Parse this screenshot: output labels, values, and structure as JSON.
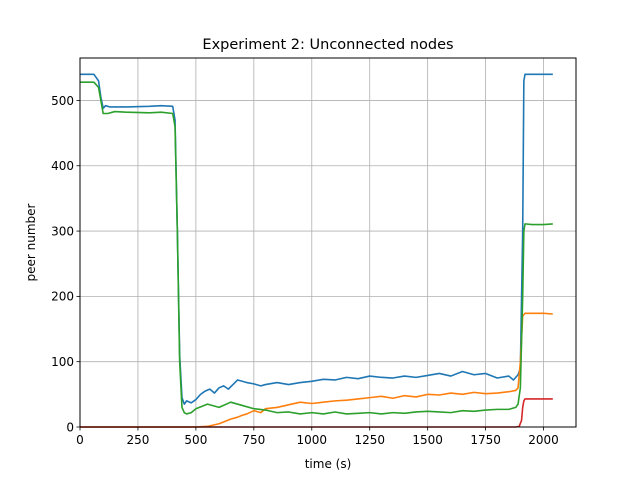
{
  "chart_data": {
    "type": "line",
    "title": "Experiment 2: Unconnected nodes",
    "xlabel": "time (s)",
    "ylabel": "peer number",
    "xlim": [
      0,
      2140
    ],
    "ylim": [
      0,
      565
    ],
    "xticks": [
      0,
      250,
      500,
      750,
      1000,
      1250,
      1500,
      1750,
      2000
    ],
    "yticks": [
      0,
      100,
      200,
      300,
      400,
      500
    ],
    "grid": true,
    "legend": "none",
    "series": [
      {
        "color": "#1f77b4",
        "x": [
          0,
          60,
          80,
          90,
          100,
          110,
          130,
          200,
          300,
          350,
          400,
          410,
          420,
          430,
          440,
          450,
          460,
          480,
          500,
          520,
          540,
          560,
          580,
          600,
          620,
          640,
          660,
          680,
          700,
          720,
          750,
          780,
          800,
          850,
          900,
          950,
          1000,
          1050,
          1100,
          1150,
          1200,
          1250,
          1300,
          1350,
          1400,
          1450,
          1500,
          1550,
          1600,
          1650,
          1700,
          1750,
          1800,
          1850,
          1870,
          1890,
          1900,
          1910,
          1915,
          1920,
          1950,
          2000,
          2040
        ],
        "y": [
          540,
          540,
          530,
          505,
          488,
          492,
          490,
          490,
          491,
          492,
          491,
          470,
          300,
          110,
          45,
          35,
          40,
          37,
          42,
          50,
          55,
          58,
          52,
          60,
          63,
          58,
          65,
          72,
          70,
          68,
          66,
          63,
          65,
          68,
          65,
          68,
          70,
          73,
          72,
          76,
          74,
          78,
          76,
          75,
          78,
          76,
          79,
          82,
          78,
          85,
          80,
          82,
          75,
          78,
          72,
          80,
          90,
          300,
          530,
          540,
          540,
          540,
          540
        ]
      },
      {
        "color": "#ff7f0e",
        "x": [
          0,
          400,
          450,
          500,
          550,
          600,
          650,
          680,
          700,
          720,
          750,
          780,
          800,
          850,
          900,
          950,
          1000,
          1050,
          1100,
          1150,
          1200,
          1250,
          1300,
          1350,
          1400,
          1450,
          1500,
          1550,
          1600,
          1650,
          1700,
          1750,
          1800,
          1850,
          1880,
          1890,
          1900,
          1910,
          1920,
          2000,
          2040
        ],
        "y": [
          0,
          0,
          0,
          0,
          1,
          5,
          12,
          15,
          18,
          20,
          25,
          22,
          28,
          30,
          34,
          38,
          36,
          38,
          40,
          41,
          43,
          45,
          47,
          44,
          48,
          46,
          50,
          49,
          52,
          50,
          53,
          51,
          52,
          54,
          56,
          60,
          100,
          170,
          174,
          174,
          173
        ]
      },
      {
        "color": "#2ca02c",
        "x": [
          0,
          60,
          80,
          90,
          100,
          120,
          150,
          200,
          300,
          350,
          400,
          410,
          420,
          430,
          440,
          450,
          460,
          480,
          500,
          550,
          600,
          650,
          700,
          750,
          800,
          850,
          900,
          950,
          1000,
          1050,
          1100,
          1150,
          1200,
          1250,
          1300,
          1350,
          1400,
          1450,
          1500,
          1550,
          1600,
          1650,
          1700,
          1750,
          1800,
          1850,
          1880,
          1890,
          1900,
          1910,
          1915,
          1920,
          1950,
          2000,
          2040
        ],
        "y": [
          528,
          528,
          520,
          500,
          480,
          480,
          483,
          482,
          481,
          482,
          480,
          460,
          300,
          100,
          30,
          22,
          20,
          22,
          28,
          35,
          30,
          38,
          33,
          28,
          26,
          22,
          23,
          20,
          22,
          20,
          23,
          20,
          21,
          22,
          20,
          22,
          21,
          23,
          24,
          23,
          22,
          25,
          24,
          26,
          27,
          27,
          30,
          35,
          60,
          200,
          300,
          311,
          310,
          310,
          311
        ]
      },
      {
        "color": "#d62728",
        "x": [
          0,
          1880,
          1895,
          1905,
          1910,
          1915,
          1920,
          2000,
          2040
        ],
        "y": [
          0,
          0,
          1,
          10,
          30,
          40,
          43,
          43,
          43
        ]
      }
    ]
  }
}
